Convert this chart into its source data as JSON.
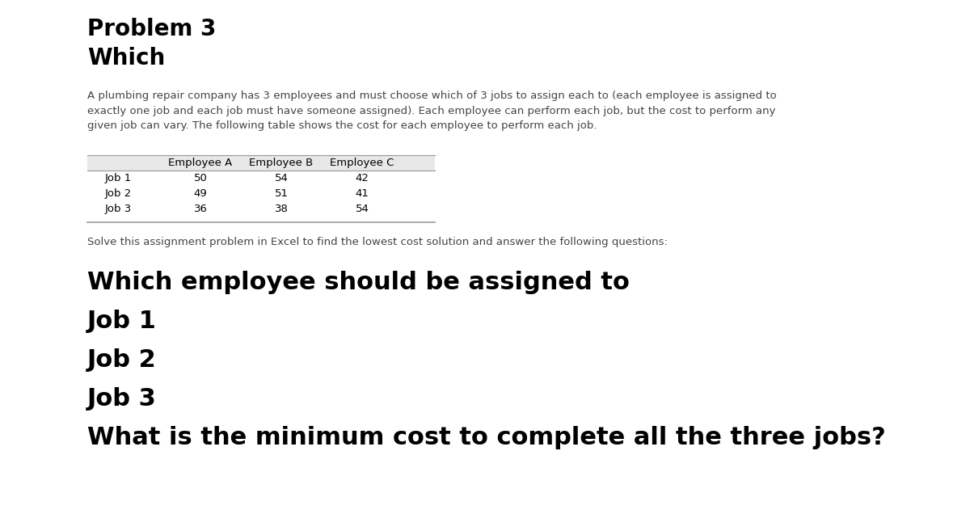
{
  "title_line1": "Problem 3",
  "title_line2": "Which",
  "description": "A plumbing repair company has 3 employees and must choose which of 3 jobs to assign each to (each employee is assigned to\nexactly one job and each job must have someone assigned). Each employee can perform each job, but the cost to perform any\ngiven job can vary. The following table shows the cost for each employee to perform each job.",
  "table_headers": [
    "",
    "Employee A",
    "Employee B",
    "Employee C"
  ],
  "table_rows": [
    [
      "Job 1",
      "50",
      "54",
      "42"
    ],
    [
      "Job 2",
      "49",
      "51",
      "41"
    ],
    [
      "Job 3",
      "36",
      "38",
      "54"
    ]
  ],
  "solve_text": "Solve this assignment problem in Excel to find the lowest cost solution and answer the following questions:",
  "bold_lines": [
    "Which employee should be assigned to",
    "Job 1",
    "Job 2",
    "Job 3",
    "What is the minimum cost to complete all the three jobs?"
  ],
  "bg_color": "#ffffff",
  "text_color": "#000000",
  "desc_color": "#444444",
  "table_header_bg": "#e8e8e8",
  "table_line_color": "#999999",
  "title_fontsize": 20,
  "desc_fontsize": 9.5,
  "table_fontsize": 9.5,
  "solve_fontsize": 9.5,
  "bold_fontsize": 22
}
